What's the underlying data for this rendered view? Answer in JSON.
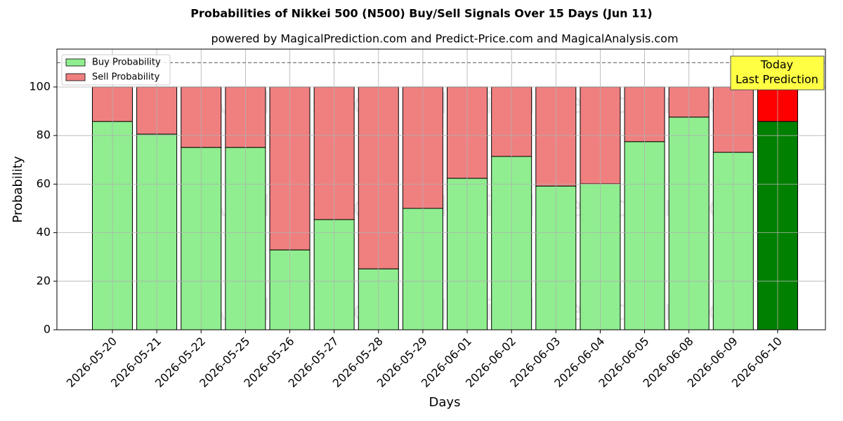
{
  "chart_data": {
    "type": "stacked_bar",
    "title": "Probabilities of Nikkei 500 (N500) Buy/Sell Signals Over 15 Days (Jun 11)",
    "subtitle": "powered by MagicalPrediction.com and Predict-Price.com and MagicalAnalysis.com",
    "x_label": "Days",
    "y_label": "Probability",
    "categories": [
      "2026-05-20",
      "2026-05-21",
      "2026-05-22",
      "2026-05-25",
      "2026-05-26",
      "2026-05-27",
      "2026-05-28",
      "2026-05-29",
      "2026-06-01",
      "2026-06-02",
      "2026-06-03",
      "2026-06-04",
      "2026-06-05",
      "2026-06-08",
      "2026-06-09",
      "2026-06-10"
    ],
    "series": [
      {
        "name": "Buy Probability",
        "color": "#90ee90",
        "colors": [
          "#90ee90",
          "#90ee90",
          "#90ee90",
          "#90ee90",
          "#90ee90",
          "#90ee90",
          "#90ee90",
          "#90ee90",
          "#90ee90",
          "#90ee90",
          "#90ee90",
          "#90ee90",
          "#90ee90",
          "#90ee90",
          "#90ee90",
          "#008000"
        ],
        "values": [
          85.8,
          80.6,
          75.1,
          75.1,
          32.9,
          45.4,
          25.1,
          50,
          62.4,
          71.4,
          59.2,
          60.1,
          77.5,
          87.6,
          73.1,
          85.8
        ]
      },
      {
        "name": "Sell Probability",
        "color": "#f08080",
        "colors": [
          "#f08080",
          "#f08080",
          "#f08080",
          "#f08080",
          "#f08080",
          "#f08080",
          "#f08080",
          "#f08080",
          "#f08080",
          "#f08080",
          "#f08080",
          "#f08080",
          "#f08080",
          "#f08080",
          "#f08080",
          "#ff0000"
        ],
        "values": [
          14.2,
          19.4,
          24.9,
          24.9,
          67.1,
          54.6,
          74.9,
          50,
          37.6,
          28.6,
          40.8,
          39.9,
          22.5,
          12.4,
          26.9,
          14.2
        ]
      }
    ],
    "ylim": [
      0,
      115.6
    ],
    "yticks": [
      0,
      20,
      40,
      60,
      80,
      100
    ],
    "grid": true,
    "legend": "upper left",
    "reference_line": 110,
    "annotation": [
      "Today",
      "Last Prediction"
    ],
    "watermarks": [
      "MagicalAnalysis.com",
      "MagicalPrediction.com"
    ]
  }
}
